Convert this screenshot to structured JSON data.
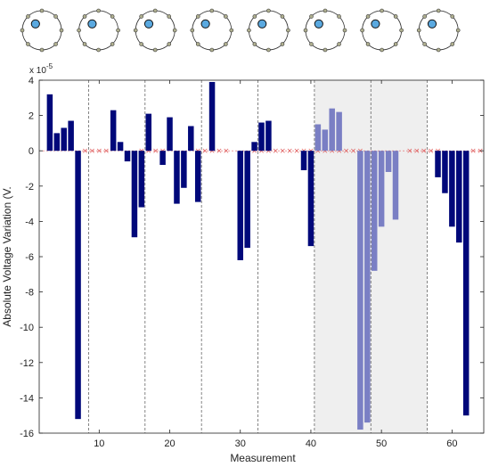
{
  "chart_data": {
    "type": "bar",
    "xlabel": "Measurement",
    "ylabel": "Absolute Voltage Variation (V.",
    "y_exponent_label": "x 10",
    "y_exponent_power": "-5",
    "xlim": [
      1.5,
      64.5
    ],
    "ylim": [
      -16,
      4
    ],
    "x_ticks": [
      "10",
      "20",
      "30",
      "40",
      "50",
      "60"
    ],
    "x_tick_values": [
      10,
      20,
      30,
      40,
      50,
      60
    ],
    "y_ticks": [
      "4",
      "2",
      "0",
      "-2",
      "-4",
      "-6",
      "-8",
      "-10",
      "-12",
      "-14",
      "-16"
    ],
    "y_tick_values": [
      4,
      2,
      0,
      -2,
      -4,
      -6,
      -8,
      -10,
      -12,
      -14,
      -16
    ],
    "group_dividers": [
      8.5,
      16.5,
      24.5,
      32.5,
      40.5,
      48.5,
      56.5
    ],
    "highlighted_range": [
      40.5,
      56.5
    ],
    "zero_markers_x": [
      8,
      9,
      10,
      11,
      16,
      17,
      18,
      19,
      24,
      25,
      26,
      27,
      28,
      32,
      33,
      34,
      35,
      36,
      37,
      38,
      39,
      40,
      41,
      42,
      43,
      44,
      45,
      46,
      47,
      54,
      55,
      56,
      57,
      58,
      63,
      64
    ],
    "x": [
      3,
      4,
      5,
      6,
      7,
      12,
      13,
      14,
      15,
      16,
      17,
      19,
      20,
      21,
      22,
      23,
      24,
      26,
      30,
      31,
      32,
      33,
      34,
      35,
      39,
      40,
      41,
      42,
      43,
      44,
      45,
      47,
      48,
      49,
      50,
      51,
      52,
      53,
      58,
      59,
      60,
      61,
      62
    ],
    "values": [
      3.2,
      1.0,
      1.3,
      1.7,
      -15.2,
      2.3,
      0.5,
      -0.6,
      -4.9,
      -3.2,
      2.1,
      -0.8,
      1.9,
      -3.0,
      -2.1,
      1.4,
      -2.9,
      3.9,
      -6.2,
      -5.5,
      0.5,
      1.6,
      1.7,
      0.0,
      -1.1,
      -5.4,
      1.5,
      1.2,
      2.4,
      2.2,
      0.0,
      -15.8,
      -15.4,
      -6.8,
      -4.3,
      -1.2,
      -3.9,
      0.0,
      -1.5,
      -2.4,
      -4.3,
      -5.2,
      -15.0
    ],
    "highlighted": [
      false,
      false,
      false,
      false,
      false,
      false,
      false,
      false,
      false,
      false,
      false,
      false,
      false,
      false,
      false,
      false,
      false,
      false,
      false,
      false,
      false,
      false,
      false,
      false,
      false,
      false,
      true,
      true,
      true,
      true,
      true,
      true,
      true,
      true,
      true,
      true,
      true,
      true,
      false,
      false,
      false,
      false,
      false
    ],
    "colors": {
      "bar": "#00087a",
      "bar_highlight": "#7a7fc4",
      "shade": "#efefef",
      "zero_marker": "#e06060",
      "divider": "#666666",
      "ring": "#333333",
      "electrode_active": "#5aa9e0"
    },
    "electrode_rings": [
      {
        "active_position": 1
      },
      {
        "active_position": 1
      },
      {
        "active_position": 1
      },
      {
        "active_position": 1
      },
      {
        "active_position": 1
      },
      {
        "active_position": 1
      },
      {
        "active_position": 1
      },
      {
        "active_position": 1
      }
    ]
  }
}
